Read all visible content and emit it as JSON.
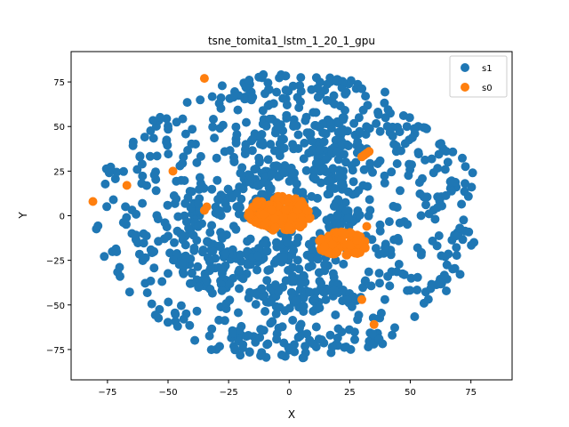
{
  "chart_data": {
    "type": "scatter",
    "title": "tsne_tomita1_lstm_1_20_1_gpu",
    "xlabel": "X",
    "ylabel": "Y",
    "xlim": [
      -90,
      92
    ],
    "ylim": [
      -92,
      92
    ],
    "xticks": [
      -75,
      -50,
      -25,
      0,
      25,
      50,
      75
    ],
    "yticks": [
      -75,
      -50,
      -25,
      0,
      25,
      50,
      75
    ],
    "grid": false,
    "legend_position": "top-right",
    "series": [
      {
        "name": "s1",
        "color": "#1f77b4",
        "clusters": [
          {
            "x": -3,
            "y": 35,
            "rx": 22,
            "ry": 22,
            "n": 80
          },
          {
            "x": 20,
            "y": 35,
            "rx": 15,
            "ry": 20,
            "n": 60
          },
          {
            "x": -30,
            "y": -25,
            "rx": 16,
            "ry": 18,
            "n": 70
          },
          {
            "x": 5,
            "y": -35,
            "rx": 22,
            "ry": 20,
            "n": 80
          },
          {
            "x": -15,
            "y": 10,
            "rx": 12,
            "ry": 12,
            "n": 30
          },
          {
            "x": 20,
            "y": 5,
            "rx": 10,
            "ry": 14,
            "n": 30
          },
          {
            "x": -35,
            "y": 0,
            "rx": 10,
            "ry": 20,
            "n": 25
          },
          {
            "x": 5,
            "y": 70,
            "rx": 30,
            "ry": 10,
            "n": 40
          },
          {
            "x": 0,
            "y": -70,
            "rx": 40,
            "ry": 10,
            "n": 50
          },
          {
            "x": 0,
            "y": 0,
            "rx": 80,
            "ry": 80,
            "n": 650
          }
        ]
      },
      {
        "name": "s0",
        "color": "#ff7f0e",
        "points": [
          [
            -81,
            8
          ],
          [
            -67,
            17
          ],
          [
            -48,
            25
          ],
          [
            -35,
            77
          ],
          [
            -35,
            3
          ],
          [
            -34,
            5
          ],
          [
            30,
            33
          ],
          [
            32,
            35
          ],
          [
            31,
            34
          ],
          [
            33,
            36
          ],
          [
            32,
            -6
          ],
          [
            30,
            -47
          ],
          [
            35,
            -61
          ]
        ],
        "clusters": [
          {
            "x": -4,
            "y": 1,
            "rx": 13,
            "ry": 10,
            "n": 160
          },
          {
            "x": 22,
            "y": -16,
            "rx": 10,
            "ry": 7,
            "n": 110
          }
        ]
      }
    ]
  }
}
